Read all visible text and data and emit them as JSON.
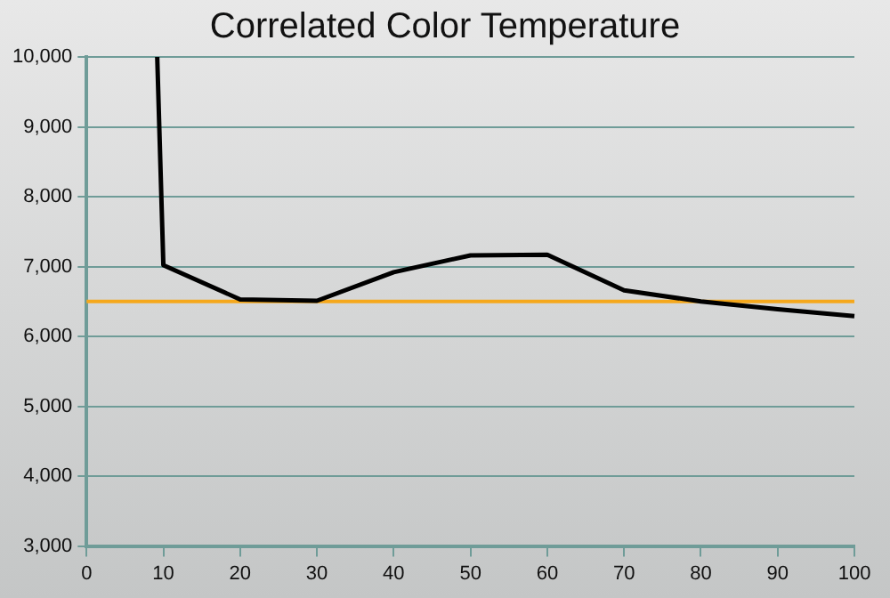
{
  "chart_data": {
    "type": "line",
    "title": "Correlated Color Temperature",
    "x": [
      9.2,
      10,
      20,
      30,
      40,
      50,
      60,
      70,
      80,
      90,
      100
    ],
    "series": [
      {
        "color": "#000000",
        "values": [
          10000,
          7020,
          6530,
          6510,
          6920,
          7160,
          7170,
          6660,
          6500,
          6390,
          6290
        ]
      }
    ],
    "xlim": [
      0,
      100
    ],
    "xticks": [
      0,
      10,
      20,
      30,
      40,
      50,
      60,
      70,
      80,
      90,
      100
    ],
    "ylim": [
      3000,
      10000
    ],
    "yticks": [
      {
        "value": 3000,
        "label": "3,000"
      },
      {
        "value": 4000,
        "label": "4,000"
      },
      {
        "value": 5000,
        "label": "5,000"
      },
      {
        "value": 6000,
        "label": "6,000"
      },
      {
        "value": 7000,
        "label": "7,000"
      },
      {
        "value": 8000,
        "label": "8,000"
      },
      {
        "value": 9000,
        "label": "9,000"
      },
      {
        "value": 10000,
        "label": "10,000"
      }
    ],
    "ref_lines": [
      {
        "axis": "y",
        "value": 6500,
        "color": "#f5a81c"
      }
    ],
    "grid": "y",
    "legend": false,
    "marker": "none",
    "line_style": "solid"
  }
}
